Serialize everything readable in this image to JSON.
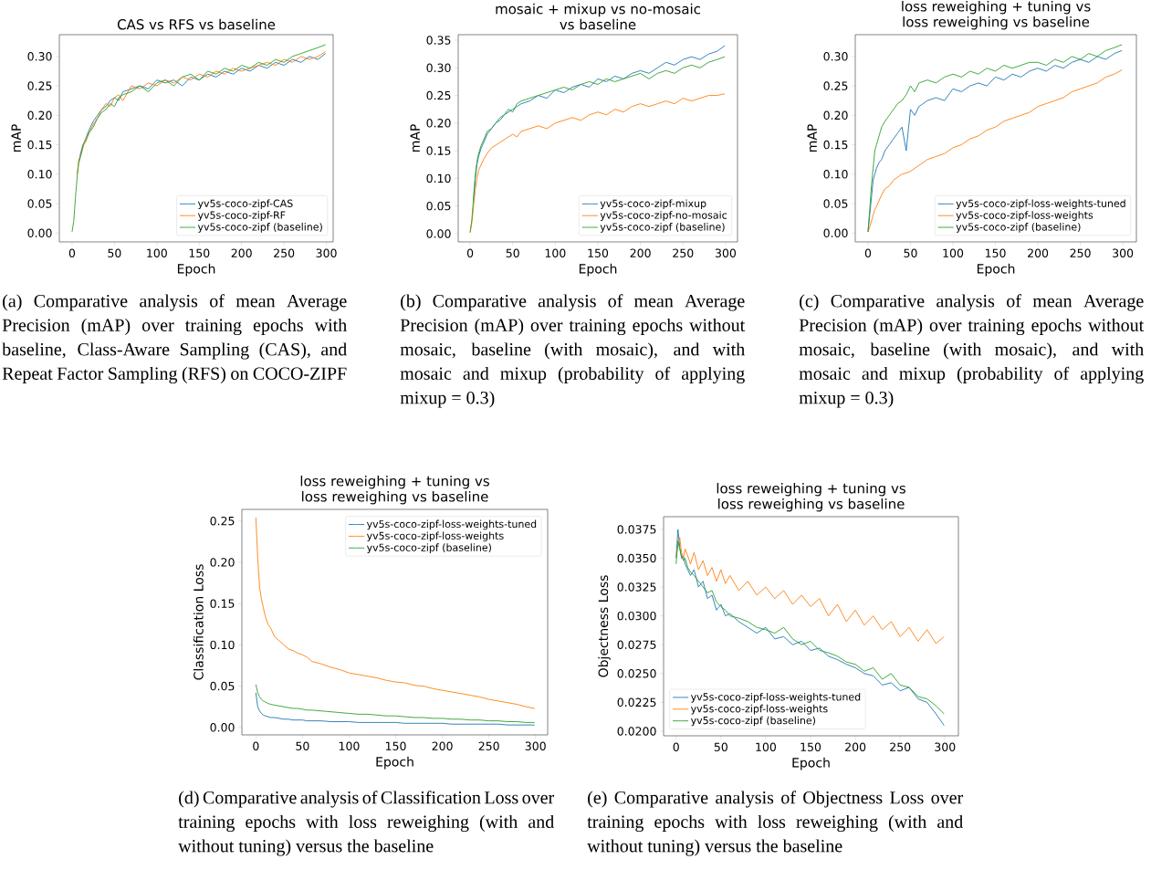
{
  "chart_data": [
    {
      "type": "line",
      "title": "CAS vs RFS vs baseline",
      "xlabel": "Epoch",
      "ylabel": "mAP",
      "legend": "bottom right",
      "annotations": [
        "(a) Comparative analysis of mean Average Precision (mAP) over training epochs with baseline, Class-Aware Sampling (CAS), and Repeat Factor Sampling (RFS) on COCO-ZIPF"
      ],
      "xlim": [
        -15,
        308
      ],
      "ylim": [
        -0.015,
        0.337
      ],
      "xticks": [
        0,
        50,
        100,
        150,
        200,
        250,
        300
      ],
      "yticks": [
        {
          "value": 0,
          "label": "0.00"
        },
        {
          "value": 0.05,
          "label": "0.05"
        },
        {
          "value": 0.1,
          "label": "0.10"
        },
        {
          "value": 0.15,
          "label": "0.15"
        },
        {
          "value": 0.2,
          "label": "0.20"
        },
        {
          "value": 0.25,
          "label": "0.25"
        },
        {
          "value": 0.3,
          "label": "0.30"
        }
      ],
      "x": [
        0,
        2,
        4,
        6,
        8,
        10,
        13,
        16,
        20,
        25,
        30,
        35,
        40,
        45,
        50,
        55,
        60,
        70,
        80,
        90,
        100,
        110,
        120,
        130,
        140,
        150,
        160,
        170,
        180,
        190,
        200,
        210,
        220,
        230,
        240,
        250,
        260,
        270,
        280,
        290,
        299
      ],
      "series": [
        {
          "name": "yv5s-coco-zipf-CAS",
          "color": "#1f77b4",
          "values": [
            null,
            null,
            null,
            null,
            0.12,
            0.135,
            0.15,
            0.16,
            0.175,
            0.19,
            0.2,
            0.21,
            0.215,
            0.225,
            0.23,
            0.225,
            0.24,
            0.245,
            0.25,
            0.245,
            0.26,
            0.255,
            0.26,
            0.25,
            0.265,
            0.26,
            0.27,
            0.265,
            0.275,
            0.27,
            0.28,
            0.275,
            0.285,
            0.28,
            0.29,
            0.285,
            0.295,
            0.29,
            0.3,
            0.295,
            0.305
          ]
        },
        {
          "name": "yv5s-coco-zipf-RF",
          "color": "#ff7f0e",
          "values": [
            null,
            null,
            null,
            0.1,
            0.125,
            0.13,
            0.145,
            0.16,
            0.17,
            0.185,
            0.195,
            0.21,
            0.22,
            0.215,
            0.23,
            0.235,
            0.225,
            0.25,
            0.245,
            0.255,
            0.25,
            0.26,
            0.255,
            0.265,
            0.26,
            0.27,
            0.265,
            0.275,
            0.27,
            0.28,
            0.275,
            0.28,
            0.285,
            0.29,
            0.285,
            0.295,
            0.29,
            0.3,
            0.295,
            0.3,
            0.308
          ]
        },
        {
          "name": "yv5s-coco-zipf (baseline)",
          "color": "#2ca02c",
          "values": [
            0.002,
            0.02,
            0.06,
            0.095,
            0.12,
            0.13,
            0.15,
            0.155,
            0.17,
            0.18,
            0.195,
            0.205,
            0.21,
            0.22,
            0.215,
            0.23,
            0.235,
            0.24,
            0.25,
            0.24,
            0.255,
            0.26,
            0.25,
            0.265,
            0.27,
            0.26,
            0.275,
            0.27,
            0.28,
            0.275,
            0.285,
            0.28,
            0.29,
            0.285,
            0.295,
            0.29,
            0.3,
            0.305,
            0.31,
            0.315,
            0.32
          ]
        }
      ]
    },
    {
      "type": "line",
      "title": "mosaic + mixup vs no-mosaic",
      "subtitle": "vs baseline",
      "xlabel": "Epoch",
      "ylabel": "mAP",
      "legend": "bottom right",
      "annotations": [
        "(b) Comparative analysis of mean Average Precision (mAP) over training epochs without mosaic, baseline (with mosaic), and with mosaic and mixup (probability of applying mixup = 0.3)"
      ],
      "xlim": [
        -14,
        314
      ],
      "ylim": [
        -0.015,
        0.36
      ],
      "xticks": [
        0,
        50,
        100,
        150,
        200,
        250,
        300
      ],
      "yticks": [
        {
          "value": 0,
          "label": "0.00"
        },
        {
          "value": 0.05,
          "label": "0.05"
        },
        {
          "value": 0.1,
          "label": "0.10"
        },
        {
          "value": 0.15,
          "label": "0.15"
        },
        {
          "value": 0.2,
          "label": "0.20"
        },
        {
          "value": 0.25,
          "label": "0.25"
        },
        {
          "value": 0.3,
          "label": "0.30"
        },
        {
          "value": 0.35,
          "label": "0.35"
        }
      ],
      "x": [
        0,
        2,
        4,
        6,
        8,
        10,
        13,
        16,
        20,
        25,
        30,
        35,
        40,
        45,
        50,
        55,
        60,
        70,
        80,
        90,
        100,
        110,
        120,
        130,
        140,
        150,
        160,
        170,
        180,
        190,
        200,
        210,
        220,
        230,
        240,
        250,
        260,
        270,
        280,
        290,
        299
      ],
      "series": [
        {
          "name": "yv5s-coco-zipf-mixup",
          "color": "#1f77b4",
          "values": [
            null,
            null,
            0.06,
            0.1,
            0.125,
            0.14,
            0.155,
            0.165,
            0.18,
            0.19,
            0.2,
            0.205,
            0.215,
            0.22,
            0.225,
            0.23,
            0.235,
            0.24,
            0.25,
            0.245,
            0.26,
            0.255,
            0.265,
            0.27,
            0.265,
            0.28,
            0.275,
            0.285,
            0.28,
            0.29,
            0.295,
            0.29,
            0.3,
            0.31,
            0.305,
            0.315,
            0.32,
            0.315,
            0.325,
            0.33,
            0.34
          ]
        },
        {
          "name": "yv5s-coco-zipf-no-mosaic",
          "color": "#ff7f0e",
          "values": [
            0.002,
            0.02,
            0.05,
            0.08,
            0.1,
            0.115,
            0.125,
            0.135,
            0.145,
            0.155,
            0.16,
            0.165,
            0.17,
            0.175,
            0.18,
            0.175,
            0.185,
            0.19,
            0.195,
            0.19,
            0.2,
            0.205,
            0.21,
            0.205,
            0.215,
            0.22,
            0.215,
            0.225,
            0.22,
            0.23,
            0.235,
            0.23,
            0.235,
            0.24,
            0.235,
            0.245,
            0.24,
            0.245,
            0.25,
            0.25,
            0.253
          ]
        },
        {
          "name": "yv5s-coco-zipf (baseline)",
          "color": "#2ca02c",
          "values": [
            0.002,
            0.025,
            0.065,
            0.105,
            0.13,
            0.145,
            0.16,
            0.17,
            0.185,
            0.19,
            0.2,
            0.21,
            0.215,
            0.225,
            0.22,
            0.235,
            0.24,
            0.245,
            0.25,
            0.255,
            0.26,
            0.265,
            0.26,
            0.27,
            0.275,
            0.27,
            0.28,
            0.275,
            0.28,
            0.285,
            0.29,
            0.28,
            0.29,
            0.295,
            0.29,
            0.3,
            0.305,
            0.3,
            0.31,
            0.315,
            0.32
          ]
        }
      ]
    },
    {
      "type": "line",
      "title": "loss reweighing + tuning vs",
      "subtitle": "loss reweighing vs baseline",
      "xlabel": "Epoch",
      "ylabel": "mAP",
      "legend": "bottom right",
      "annotations": [
        "(c) Comparative analysis of mean Average Precision (mAP) over training epochs without mosaic, baseline (with mosaic), and with mosaic and mixup (probability of applying mixup = 0.3)"
      ],
      "xlim": [
        -15,
        316
      ],
      "ylim": [
        -0.015,
        0.337
      ],
      "xticks": [
        0,
        50,
        100,
        150,
        200,
        250,
        300
      ],
      "yticks": [
        {
          "value": 0,
          "label": "0.00"
        },
        {
          "value": 0.05,
          "label": "0.05"
        },
        {
          "value": 0.1,
          "label": "0.10"
        },
        {
          "value": 0.15,
          "label": "0.15"
        },
        {
          "value": 0.2,
          "label": "0.20"
        },
        {
          "value": 0.25,
          "label": "0.25"
        },
        {
          "value": 0.3,
          "label": "0.30"
        }
      ],
      "x": [
        0,
        2,
        4,
        6,
        8,
        10,
        13,
        16,
        20,
        25,
        30,
        35,
        40,
        45,
        50,
        55,
        60,
        70,
        80,
        90,
        100,
        110,
        120,
        130,
        140,
        150,
        160,
        170,
        180,
        190,
        200,
        210,
        220,
        230,
        240,
        250,
        260,
        270,
        280,
        290,
        299
      ],
      "series": [
        {
          "name": "yv5s-coco-zipf-loss-weights-tuned",
          "color": "#1f77b4",
          "values": [
            0.002,
            0.03,
            0.06,
            0.09,
            0.1,
            0.11,
            0.12,
            0.125,
            0.14,
            0.15,
            0.16,
            0.17,
            0.18,
            0.14,
            0.21,
            0.2,
            0.215,
            0.225,
            0.23,
            0.225,
            0.245,
            0.24,
            0.25,
            0.255,
            0.25,
            0.265,
            0.26,
            0.27,
            0.265,
            0.275,
            0.28,
            0.275,
            0.285,
            0.28,
            0.29,
            0.295,
            0.29,
            0.3,
            0.295,
            0.305,
            0.31
          ]
        },
        {
          "name": "yv5s-coco-zipf-loss-weights",
          "color": "#ff7f0e",
          "values": [
            0.002,
            0.01,
            0.02,
            0.03,
            0.04,
            0.045,
            0.055,
            0.065,
            0.075,
            0.08,
            0.09,
            0.095,
            0.1,
            0.102,
            0.105,
            0.11,
            0.115,
            0.125,
            0.13,
            0.135,
            0.145,
            0.15,
            0.16,
            0.165,
            0.175,
            0.18,
            0.19,
            0.195,
            0.2,
            0.205,
            0.215,
            0.22,
            0.225,
            0.23,
            0.24,
            0.245,
            0.25,
            0.255,
            0.265,
            0.27,
            0.277
          ]
        },
        {
          "name": "yv5s-coco-zipf (baseline)",
          "color": "#2ca02c",
          "values": [
            0.002,
            0.04,
            0.08,
            0.11,
            0.14,
            0.15,
            0.165,
            0.18,
            0.19,
            0.2,
            0.21,
            0.22,
            0.225,
            0.235,
            0.25,
            0.24,
            0.255,
            0.26,
            0.255,
            0.265,
            0.27,
            0.265,
            0.275,
            0.27,
            0.28,
            0.275,
            0.285,
            0.28,
            0.285,
            0.29,
            0.29,
            0.285,
            0.295,
            0.29,
            0.3,
            0.295,
            0.305,
            0.3,
            0.31,
            0.315,
            0.32
          ]
        }
      ]
    },
    {
      "type": "line",
      "title": "loss reweighing + tuning vs",
      "subtitle": "loss reweighing vs baseline",
      "xlabel": "Epoch",
      "ylabel": "Classification Loss",
      "legend": "top right",
      "annotations": [
        "(d) Comparative analysis of Classification Loss over training epochs with loss reweighing (with and without tuning) versus the baseline"
      ],
      "xlim": [
        -15,
        313
      ],
      "ylim": [
        -0.009,
        0.264
      ],
      "xticks": [
        0,
        50,
        100,
        150,
        200,
        250,
        300
      ],
      "yticks": [
        {
          "value": 0,
          "label": "0.00"
        },
        {
          "value": 0.05,
          "label": "0.05"
        },
        {
          "value": 0.1,
          "label": "0.10"
        },
        {
          "value": 0.15,
          "label": "0.15"
        },
        {
          "value": 0.2,
          "label": "0.20"
        },
        {
          "value": 0.25,
          "label": "0.25"
        }
      ],
      "x": [
        0,
        2,
        4,
        6,
        8,
        10,
        13,
        16,
        20,
        25,
        30,
        35,
        40,
        45,
        50,
        55,
        60,
        70,
        80,
        90,
        100,
        110,
        120,
        130,
        140,
        150,
        160,
        170,
        180,
        190,
        200,
        210,
        220,
        230,
        240,
        250,
        260,
        270,
        280,
        290,
        299
      ],
      "series": [
        {
          "name": "yv5s-coco-zipf-loss-weights-tuned",
          "color": "#1f77b4",
          "values": [
            0.042,
            0.025,
            0.02,
            0.017,
            0.015,
            0.014,
            0.013,
            0.012,
            0.012,
            0.011,
            0.01,
            0.01,
            0.009,
            0.009,
            0.009,
            0.008,
            0.008,
            0.008,
            0.007,
            0.007,
            0.007,
            0.006,
            0.006,
            0.006,
            0.006,
            0.006,
            0.005,
            0.005,
            0.005,
            0.005,
            0.005,
            0.004,
            0.004,
            0.004,
            0.004,
            0.004,
            0.004,
            0.003,
            0.003,
            0.003,
            0.003
          ]
        },
        {
          "name": "yv5s-coco-zipf-loss-weights",
          "color": "#ff7f0e",
          "values": [
            0.254,
            0.205,
            0.17,
            0.155,
            0.145,
            0.135,
            0.125,
            0.12,
            0.11,
            0.105,
            0.1,
            0.095,
            0.093,
            0.09,
            0.088,
            0.085,
            0.08,
            0.077,
            0.073,
            0.07,
            0.066,
            0.064,
            0.062,
            0.06,
            0.057,
            0.055,
            0.054,
            0.051,
            0.05,
            0.047,
            0.045,
            0.043,
            0.041,
            0.039,
            0.037,
            0.034,
            0.032,
            0.03,
            0.028,
            0.025,
            0.023
          ]
        },
        {
          "name": "yv5s-coco-zipf (baseline)",
          "color": "#2ca02c",
          "values": [
            0.052,
            0.042,
            0.037,
            0.034,
            0.032,
            0.031,
            0.029,
            0.028,
            0.027,
            0.026,
            0.025,
            0.024,
            0.023,
            0.023,
            0.022,
            0.021,
            0.021,
            0.02,
            0.019,
            0.018,
            0.017,
            0.016,
            0.016,
            0.015,
            0.014,
            0.014,
            0.013,
            0.012,
            0.012,
            0.011,
            0.011,
            0.01,
            0.01,
            0.009,
            0.009,
            0.008,
            0.008,
            0.007,
            0.007,
            0.006,
            0.006
          ]
        }
      ]
    },
    {
      "type": "line",
      "title": "loss reweighing + tuning vs",
      "subtitle": "loss reweighing vs baseline",
      "xlabel": "Epoch",
      "ylabel": "Objectness Loss",
      "legend": "bottom left",
      "annotations": [
        "(e) Comparative analysis of Objectness Loss over training epochs with loss reweighing (with and without tuning) versus the baseline"
      ],
      "xlim": [
        -14,
        315
      ],
      "ylim": [
        0.0196,
        0.0386
      ],
      "xticks": [
        0,
        50,
        100,
        150,
        200,
        250,
        300
      ],
      "yticks": [
        {
          "value": 0.02,
          "label": "0.0200"
        },
        {
          "value": 0.0225,
          "label": "0.0225"
        },
        {
          "value": 0.025,
          "label": "0.0250"
        },
        {
          "value": 0.0275,
          "label": "0.0275"
        },
        {
          "value": 0.03,
          "label": "0.0300"
        },
        {
          "value": 0.0325,
          "label": "0.0325"
        },
        {
          "value": 0.035,
          "label": "0.0350"
        },
        {
          "value": 0.0375,
          "label": "0.0375"
        }
      ],
      "x": [
        0,
        2,
        4,
        6,
        8,
        10,
        13,
        16,
        20,
        25,
        30,
        35,
        40,
        45,
        50,
        55,
        60,
        70,
        80,
        90,
        100,
        110,
        120,
        130,
        140,
        150,
        160,
        170,
        180,
        190,
        200,
        210,
        220,
        230,
        240,
        250,
        260,
        270,
        280,
        290,
        299
      ],
      "series": [
        {
          "name": "yv5s-coco-zipf-loss-weights-tuned",
          "color": "#1f77b4",
          "values": [
            0.035,
            0.0375,
            0.036,
            0.035,
            0.0352,
            0.0345,
            0.034,
            0.0335,
            0.034,
            0.0325,
            0.033,
            0.0315,
            0.0318,
            0.0305,
            0.031,
            0.03,
            0.0302,
            0.0295,
            0.029,
            0.0285,
            0.029,
            0.028,
            0.0282,
            0.0275,
            0.0278,
            0.027,
            0.0272,
            0.0265,
            0.0262,
            0.0258,
            0.0255,
            0.025,
            0.0248,
            0.024,
            0.0242,
            0.0235,
            0.0238,
            0.0228,
            0.0225,
            0.0215,
            0.0205
          ]
        },
        {
          "name": "yv5s-coco-zipf-loss-weights",
          "color": "#ff7f0e",
          "values": [
            0.0352,
            0.036,
            0.0368,
            0.0355,
            0.035,
            0.0358,
            0.0352,
            0.0345,
            0.0355,
            0.034,
            0.0348,
            0.0335,
            0.0342,
            0.033,
            0.034,
            0.0328,
            0.0335,
            0.0322,
            0.033,
            0.0318,
            0.0325,
            0.0315,
            0.0322,
            0.031,
            0.0318,
            0.0308,
            0.0315,
            0.03,
            0.031,
            0.0295,
            0.0305,
            0.0292,
            0.03,
            0.0288,
            0.0295,
            0.0282,
            0.029,
            0.0278,
            0.0288,
            0.0276,
            0.0282
          ]
        },
        {
          "name": "yv5s-coco-zipf (baseline)",
          "color": "#2ca02c",
          "values": [
            0.0345,
            0.0365,
            0.0358,
            0.0352,
            0.0348,
            0.035,
            0.0342,
            0.0338,
            0.0335,
            0.033,
            0.0325,
            0.032,
            0.0322,
            0.0312,
            0.0308,
            0.0305,
            0.03,
            0.0298,
            0.0295,
            0.029,
            0.0288,
            0.0285,
            0.029,
            0.028,
            0.0275,
            0.0278,
            0.027,
            0.0268,
            0.0265,
            0.026,
            0.0258,
            0.0252,
            0.0255,
            0.0245,
            0.025,
            0.024,
            0.0238,
            0.023,
            0.0228,
            0.0222,
            0.0215
          ]
        }
      ]
    }
  ]
}
